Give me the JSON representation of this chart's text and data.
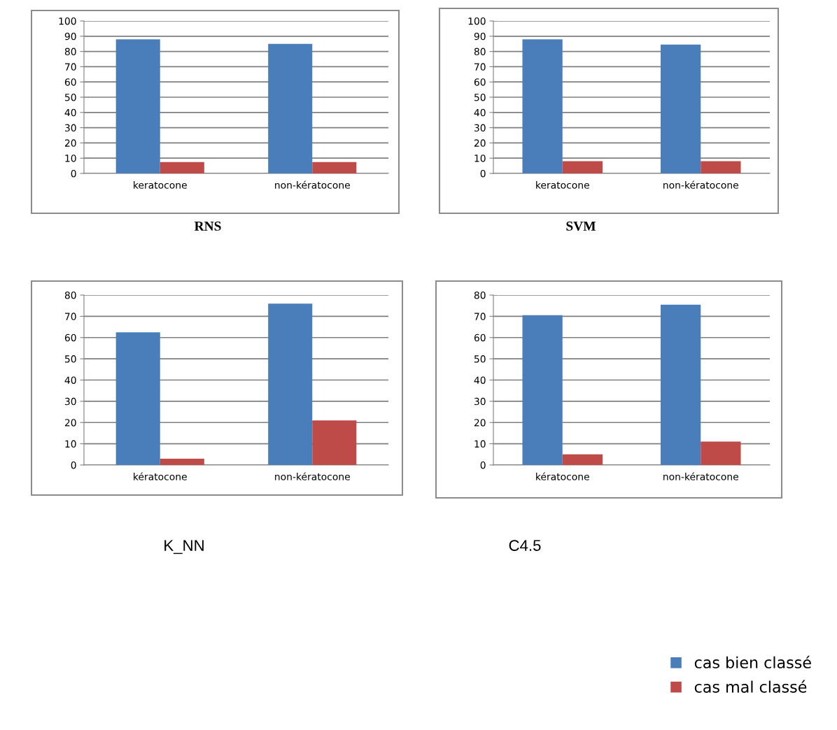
{
  "chart_data": [
    {
      "type": "bar",
      "title": "RNS",
      "categories": [
        "keratocone",
        "non-kératocone"
      ],
      "series": [
        {
          "color": "#4a7ebb",
          "values": [
            88,
            85
          ]
        },
        {
          "color": "#be4b48",
          "values": [
            7.5,
            7.5
          ]
        }
      ],
      "ylim": [
        0,
        100
      ],
      "yticks": [
        0,
        10,
        20,
        30,
        40,
        50,
        60,
        70,
        80,
        90,
        100
      ],
      "grid": "y",
      "legend": false
    },
    {
      "type": "bar",
      "title": "SVM",
      "categories": [
        "keratocone",
        "non-kératocone"
      ],
      "series": [
        {
          "color": "#4a7ebb",
          "values": [
            88,
            84.5
          ]
        },
        {
          "color": "#be4b48",
          "values": [
            8,
            8
          ]
        }
      ],
      "ylim": [
        0,
        100
      ],
      "yticks": [
        0,
        10,
        20,
        30,
        40,
        50,
        60,
        70,
        80,
        90,
        100
      ],
      "grid": "y",
      "legend": false
    },
    {
      "type": "bar",
      "title": "K_NN",
      "categories": [
        "kératocone",
        "non-kératocone"
      ],
      "series": [
        {
          "color": "#4a7ebb",
          "values": [
            62.5,
            76
          ]
        },
        {
          "color": "#be4b48",
          "values": [
            3,
            21
          ]
        }
      ],
      "ylim": [
        0,
        80
      ],
      "yticks": [
        0,
        10,
        20,
        30,
        40,
        50,
        60,
        70,
        80
      ],
      "grid": "y",
      "legend": false
    },
    {
      "type": "bar",
      "title": "C4.5",
      "categories": [
        "kératocone",
        "non-kératocone"
      ],
      "series": [
        {
          "name": "cas bien classé",
          "color": "#4a7ebb",
          "values": [
            70.5,
            75.5
          ]
        },
        {
          "name": "cas mal classé",
          "color": "#be4b48",
          "values": [
            5,
            11
          ]
        }
      ],
      "ylim": [
        0,
        80
      ],
      "yticks": [
        0,
        10,
        20,
        30,
        40,
        50,
        60,
        70,
        80
      ],
      "grid": "y",
      "legend": "bottom right"
    }
  ]
}
